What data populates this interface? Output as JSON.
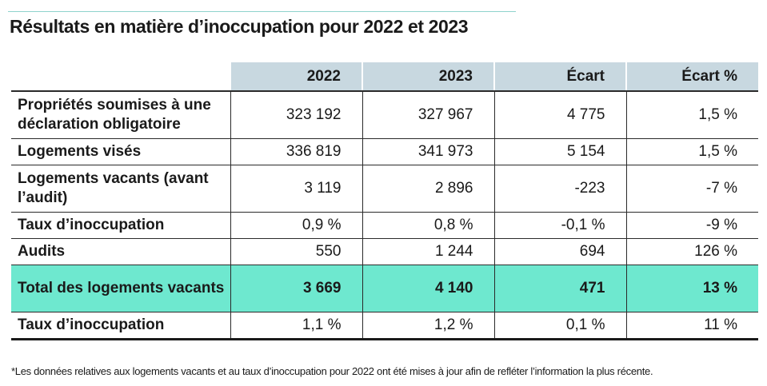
{
  "title": "Résultats en matière d’inoccupation pour 2022 et 2023",
  "table": {
    "headers": [
      "",
      "2022",
      "2023",
      "Écart",
      "Écart %"
    ],
    "rows": [
      {
        "label": "Propriétés soumises à une déclaration obligatoire",
        "v2022": "323 192",
        "v2023": "327 967",
        "ecart": "4 775",
        "ecart_pct": "1,5 %"
      },
      {
        "label": "Logements visés",
        "v2022": "336 819",
        "v2023": "341 973",
        "ecart": "5 154",
        "ecart_pct": "1,5 %"
      },
      {
        "label": "Logements vacants (avant l’audit)",
        "v2022": "3 119",
        "v2023": "2 896",
        "ecart": "-223",
        "ecart_pct": "-7 %"
      },
      {
        "label": "Taux d’inoccupation",
        "v2022": "0,9 %",
        "v2023": "0,8 %",
        "ecart": "-0,1 %",
        "ecart_pct": "-9 %"
      },
      {
        "label": "Audits",
        "v2022": "550",
        "v2023": "1 244",
        "ecart": "694",
        "ecart_pct": "126 %"
      },
      {
        "label": "Total des logements vacants",
        "v2022": "3 669",
        "v2023": "4 140",
        "ecart": "471",
        "ecart_pct": "13 %"
      },
      {
        "label": "Taux d’inoccupation",
        "v2022": "1,1 %",
        "v2023": "1,2 %",
        "ecart": "0,1 %",
        "ecart_pct": "11 %"
      }
    ]
  },
  "footnote": "*Les données relatives aux logements vacants et au taux d’inoccupation pour 2022 ont été mises à jour afin de refléter l’information la plus récente.",
  "colors": {
    "header_bg": "#c8d8e0",
    "total_bg": "#6ee8cf",
    "rule": "#8fd3cc",
    "text": "#1a1a1a"
  }
}
